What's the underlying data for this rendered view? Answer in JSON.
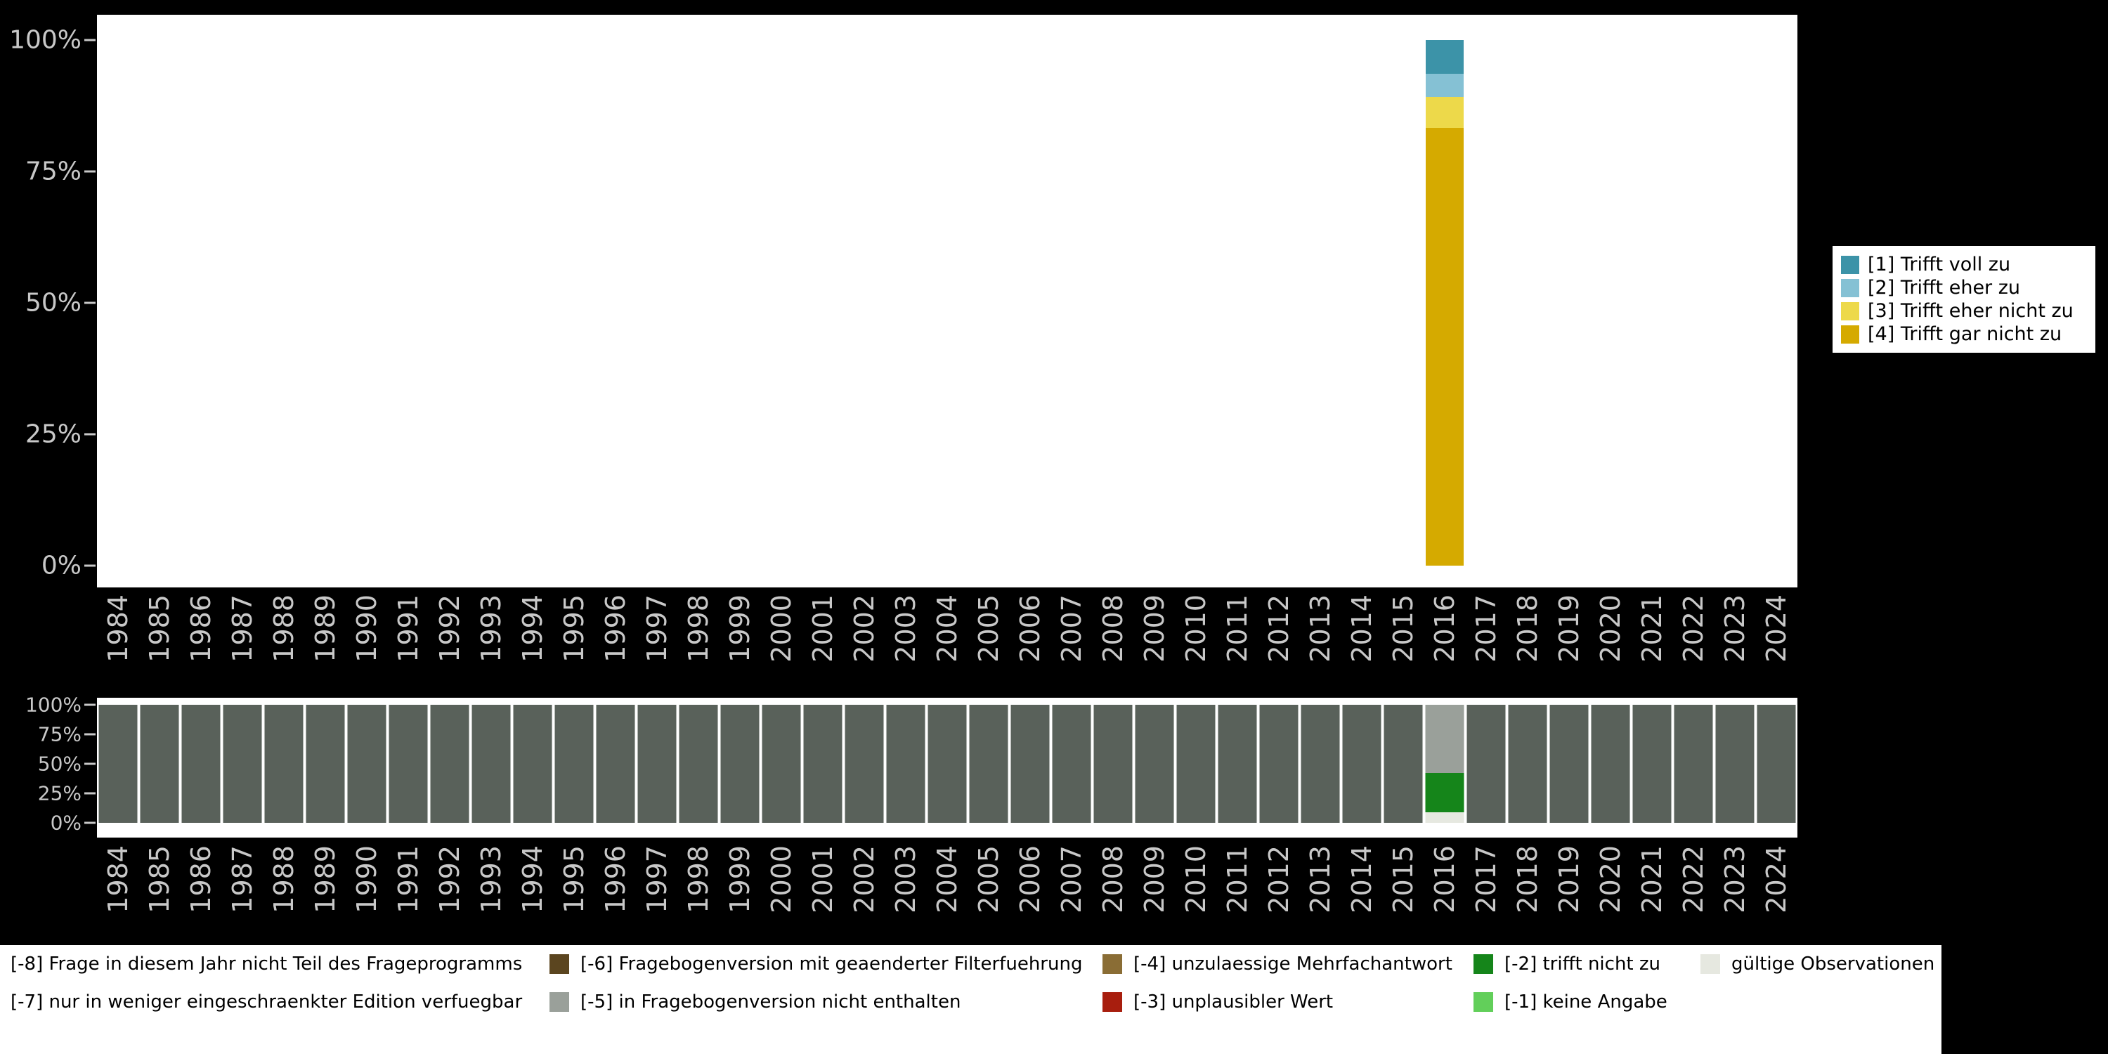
{
  "colors": {
    "background": "#000000",
    "panel": "#ffffff",
    "axis_text": "#c8c8c8",
    "legend_bg": "#ffffff",
    "legend_text": "#000000"
  },
  "years": [
    "1984",
    "1985",
    "1986",
    "1987",
    "1988",
    "1989",
    "1990",
    "1991",
    "1992",
    "1993",
    "1994",
    "1995",
    "1996",
    "1997",
    "1998",
    "1999",
    "2000",
    "2001",
    "2002",
    "2003",
    "2004",
    "2005",
    "2006",
    "2007",
    "2008",
    "2009",
    "2010",
    "2011",
    "2012",
    "2013",
    "2014",
    "2015",
    "2016",
    "2017",
    "2018",
    "2019",
    "2020",
    "2021",
    "2022",
    "2023",
    "2024"
  ],
  "axes": {
    "y_ticks": [
      "100%",
      "75%",
      "50%",
      "25%",
      "0%"
    ],
    "x_axis": "years 1984-2024 on both panels"
  },
  "chart_data": [
    {
      "type": "bar",
      "stacked": true,
      "units": "percent",
      "ylim": [
        0,
        100
      ],
      "title": "",
      "xlabel": "",
      "ylabel": "",
      "categories": "years 1984-2024 (see years array); only 2016 has data",
      "legend_position": "right",
      "bars_by_year": {
        "2016": [
          {
            "label": "[1] Trifft voll zu",
            "value": 6.4,
            "color": "#3c93a8"
          },
          {
            "label": "[2] Trifft eher zu",
            "value": 4.4,
            "color": "#85c1d4"
          },
          {
            "label": "[3] Trifft eher nicht zu",
            "value": 5.9,
            "color": "#edd94a"
          },
          {
            "label": "[4] Trifft gar nicht zu",
            "value": 83.3,
            "color": "#d5aa00"
          }
        ]
      }
    },
    {
      "type": "bar",
      "stacked": true,
      "units": "percent",
      "ylim": [
        0,
        100
      ],
      "title": "",
      "categories": "years 1984-2024 (see years array)",
      "default_bar": [
        {
          "label": "[-8] Frage in diesem Jahr nicht Teil des Frageprogramms",
          "value": 100,
          "color": "#59615a"
        }
      ],
      "bars_by_year": {
        "2016": [
          {
            "label": "[-5] in Fragebogenversion nicht enthalten",
            "value": 58,
            "color": "#9aa09a"
          },
          {
            "label": "[-2] trifft nicht zu",
            "value": 33,
            "color": "#15851a"
          },
          {
            "label": "gültige Observationen",
            "value": 9,
            "color": "#e6e8e0"
          }
        ]
      }
    }
  ],
  "top_legend": {
    "items": [
      {
        "label": "[1] Trifft voll zu",
        "color": "#3c93a8"
      },
      {
        "label": "[2] Trifft eher zu",
        "color": "#85c1d4"
      },
      {
        "label": "[3] Trifft eher nicht zu",
        "color": "#edd94a"
      },
      {
        "label": "[4] Trifft gar nicht zu",
        "color": "#d5aa00"
      }
    ]
  },
  "missing_legend": {
    "columns": [
      {
        "items": [
          {
            "label": "[-8] Frage in diesem Jahr nicht Teil des Frageprogramms",
            "swatch": null
          },
          {
            "label": "[-7] nur in weniger eingeschraenkter Edition verfuegbar",
            "swatch": null
          }
        ]
      },
      {
        "items": [
          {
            "label": "[-6] Fragebogenversion mit geaenderter Filterfuehrung",
            "swatch": "#5b451f"
          },
          {
            "label": "[-5] in Fragebogenversion nicht enthalten",
            "swatch": "#9aa09a"
          }
        ]
      },
      {
        "items": [
          {
            "label": "[-4] unzulaessige Mehrfachantwort",
            "swatch": "#8a6d35"
          },
          {
            "label": "[-3] unplausibler Wert",
            "swatch": "#a81e0e"
          }
        ]
      },
      {
        "items": [
          {
            "label": "[-2] trifft nicht zu",
            "swatch": "#15851a"
          },
          {
            "label": "[-1] keine Angabe",
            "swatch": "#62cf5a"
          }
        ]
      },
      {
        "items": [
          {
            "label": "gültige Observationen",
            "swatch": "#e6e8e0"
          }
        ]
      }
    ]
  }
}
